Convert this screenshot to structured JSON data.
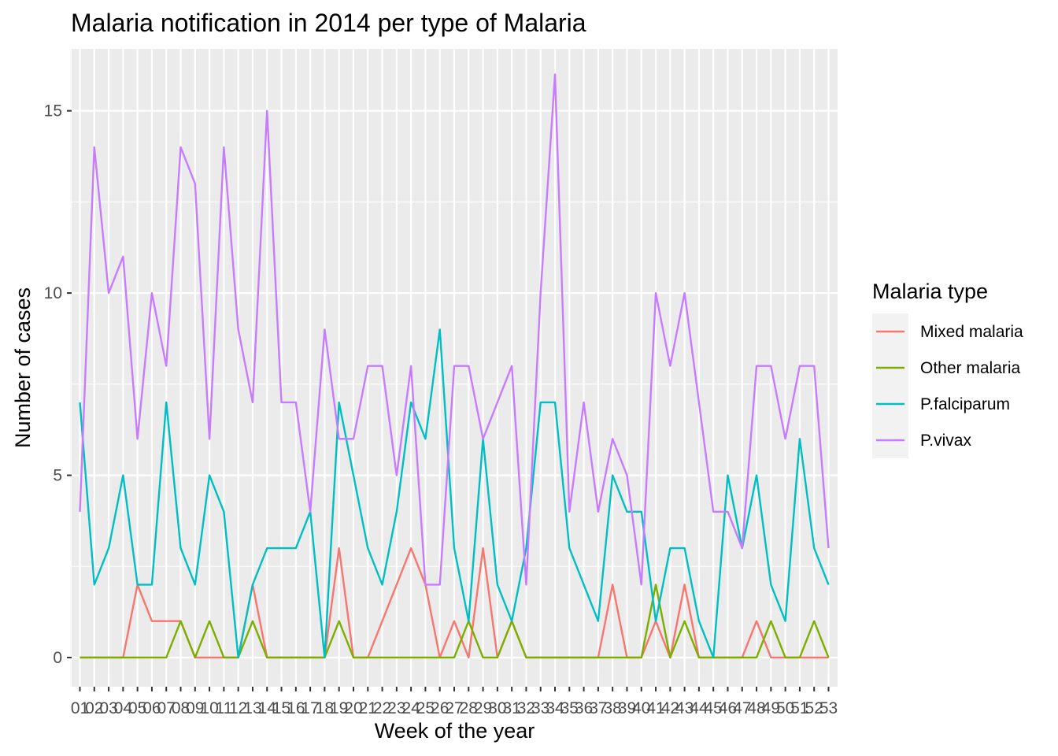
{
  "chart_data": {
    "type": "line",
    "title": "Malaria notification in 2014 per type of Malaria",
    "xlabel": "Week of the year",
    "ylabel": "Number of cases",
    "x": [
      "01",
      "02",
      "03",
      "04",
      "05",
      "06",
      "07",
      "08",
      "09",
      "10",
      "11",
      "12",
      "13",
      "14",
      "15",
      "16",
      "17",
      "18",
      "19",
      "20",
      "21",
      "22",
      "23",
      "24",
      "25",
      "26",
      "27",
      "28",
      "29",
      "30",
      "31",
      "32",
      "33",
      "34",
      "35",
      "36",
      "37",
      "38",
      "39",
      "40",
      "41",
      "42",
      "43",
      "44",
      "45",
      "46",
      "47",
      "48",
      "49",
      "50",
      "51",
      "52",
      "53"
    ],
    "ylim": [
      -0.8,
      16.7
    ],
    "yticks": [
      0,
      5,
      10,
      15
    ],
    "yticklabels": [
      "0",
      "5",
      "10",
      "15"
    ],
    "grid": true,
    "legend_position": "right",
    "legend_title": "Malaria type",
    "series": [
      {
        "name": "Mixed malaria",
        "color": "#F8766D",
        "values": [
          0,
          0,
          0,
          0,
          2,
          1,
          1,
          1,
          0,
          0,
          0,
          0,
          2,
          0,
          0,
          0,
          0,
          0,
          3,
          0,
          0,
          1,
          2,
          3,
          2,
          0,
          1,
          0,
          3,
          0,
          1,
          0,
          0,
          0,
          0,
          0,
          0,
          2,
          0,
          0,
          1,
          0,
          2,
          0,
          0,
          0,
          0,
          1,
          0,
          0,
          0,
          0,
          0
        ]
      },
      {
        "name": "Other malaria",
        "color": "#7CAE00",
        "values": [
          0,
          0,
          0,
          0,
          0,
          0,
          0,
          1,
          0,
          1,
          0,
          0,
          1,
          0,
          0,
          0,
          0,
          0,
          1,
          0,
          0,
          0,
          0,
          0,
          0,
          0,
          0,
          1,
          0,
          0,
          1,
          0,
          0,
          0,
          0,
          0,
          0,
          0,
          0,
          0,
          2,
          0,
          1,
          0,
          0,
          0,
          0,
          0,
          1,
          0,
          0,
          1,
          0
        ]
      },
      {
        "name": "P.falciparum",
        "color": "#00BFC4",
        "values": [
          7,
          2,
          3,
          5,
          2,
          2,
          7,
          3,
          2,
          5,
          4,
          0,
          2,
          3,
          3,
          3,
          4,
          0,
          7,
          5,
          3,
          2,
          4,
          7,
          6,
          9,
          3,
          1,
          6,
          2,
          1,
          3,
          7,
          7,
          3,
          2,
          1,
          5,
          4,
          4,
          1,
          3,
          3,
          1,
          0,
          5,
          3,
          5,
          2,
          1,
          6,
          3,
          2
        ]
      },
      {
        "name": "P.vivax",
        "color": "#C77CFF",
        "values": [
          4,
          14,
          10,
          11,
          6,
          10,
          8,
          14,
          13,
          6,
          14,
          9,
          7,
          15,
          7,
          7,
          4,
          9,
          6,
          6,
          8,
          8,
          5,
          8,
          2,
          2,
          8,
          8,
          6,
          7,
          8,
          2,
          10,
          16,
          4,
          7,
          4,
          6,
          5,
          2,
          10,
          8,
          10,
          7,
          4,
          4,
          3,
          8,
          8,
          6,
          8,
          8,
          3
        ]
      }
    ]
  }
}
